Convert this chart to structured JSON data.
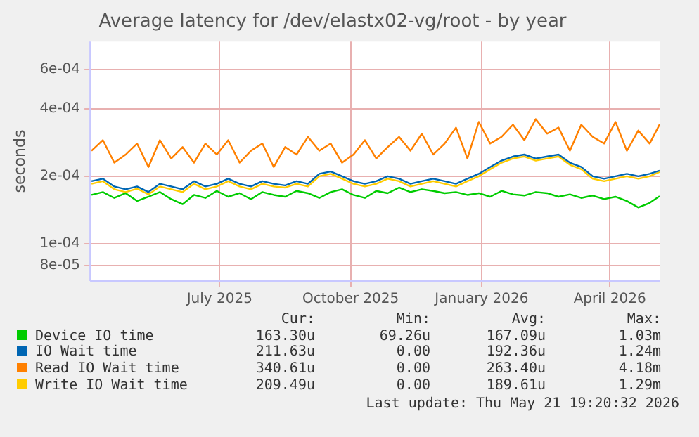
{
  "chart_data": {
    "type": "line",
    "title": "Average latency for /dev/elastx02-vg/root - by year",
    "ylabel": "seconds",
    "x": [
      "2025-04-17",
      "2025-04-25",
      "2025-05-03",
      "2025-05-11",
      "2025-05-19",
      "2025-05-27",
      "2025-06-04",
      "2025-06-12",
      "2025-06-20",
      "2025-06-28",
      "2025-07-06",
      "2025-07-14",
      "2025-07-22",
      "2025-07-30",
      "2025-08-07",
      "2025-08-15",
      "2025-08-23",
      "2025-08-31",
      "2025-09-08",
      "2025-09-16",
      "2025-09-24",
      "2025-10-02",
      "2025-10-10",
      "2025-10-18",
      "2025-10-26",
      "2025-11-03",
      "2025-11-11",
      "2025-11-19",
      "2025-11-27",
      "2025-12-05",
      "2025-12-13",
      "2025-12-21",
      "2025-12-29",
      "2026-01-06",
      "2026-01-14",
      "2026-01-22",
      "2026-01-30",
      "2026-02-07",
      "2026-02-15",
      "2026-02-23",
      "2026-03-03",
      "2026-03-11",
      "2026-03-19",
      "2026-03-27",
      "2026-04-04",
      "2026-04-12",
      "2026-04-20",
      "2026-04-28",
      "2026-05-06",
      "2026-05-14",
      "2026-05-21"
    ],
    "series": [
      {
        "name": "Device IO time",
        "color": "#00cc00",
        "values": [
          0.000165,
          0.00017,
          0.00016,
          0.000168,
          0.000155,
          0.000162,
          0.00017,
          0.000158,
          0.00015,
          0.000165,
          0.00016,
          0.000172,
          0.000162,
          0.000168,
          0.000158,
          0.00017,
          0.000165,
          0.000162,
          0.000172,
          0.000168,
          0.00016,
          0.00017,
          0.000175,
          0.000165,
          0.00016,
          0.000172,
          0.000168,
          0.000178,
          0.00017,
          0.000175,
          0.000172,
          0.000168,
          0.00017,
          0.000165,
          0.000168,
          0.000162,
          0.000172,
          0.000166,
          0.000164,
          0.00017,
          0.000168,
          0.000162,
          0.000166,
          0.00016,
          0.000164,
          0.000158,
          0.000162,
          0.000155,
          0.000145,
          0.000152,
          0.000163
        ]
      },
      {
        "name": "IO Wait time",
        "color": "#0066b3",
        "values": [
          0.00019,
          0.000195,
          0.00018,
          0.000175,
          0.00018,
          0.00017,
          0.000185,
          0.00018,
          0.000175,
          0.00019,
          0.00018,
          0.000185,
          0.000195,
          0.000185,
          0.00018,
          0.00019,
          0.000185,
          0.000182,
          0.00019,
          0.000185,
          0.000205,
          0.00021,
          0.0002,
          0.00019,
          0.000185,
          0.00019,
          0.0002,
          0.000195,
          0.000185,
          0.00019,
          0.000195,
          0.00019,
          0.000185,
          0.000195,
          0.000205,
          0.00022,
          0.000235,
          0.000245,
          0.00025,
          0.00024,
          0.000245,
          0.00025,
          0.00023,
          0.00022,
          0.0002,
          0.000195,
          0.0002,
          0.000205,
          0.0002,
          0.000205,
          0.000212
        ]
      },
      {
        "name": "Read IO Wait time",
        "color": "#ff8000",
        "values": [
          0.00026,
          0.00029,
          0.00023,
          0.00025,
          0.00028,
          0.00022,
          0.00029,
          0.00024,
          0.00027,
          0.00023,
          0.00028,
          0.00025,
          0.00029,
          0.00023,
          0.00026,
          0.00028,
          0.00022,
          0.00027,
          0.00025,
          0.0003,
          0.00026,
          0.00028,
          0.00023,
          0.00025,
          0.00029,
          0.00024,
          0.00027,
          0.0003,
          0.00026,
          0.00031,
          0.00025,
          0.00028,
          0.00033,
          0.00024,
          0.00035,
          0.00028,
          0.0003,
          0.00034,
          0.00029,
          0.00036,
          0.00031,
          0.00033,
          0.00026,
          0.00034,
          0.0003,
          0.00028,
          0.00035,
          0.00026,
          0.00032,
          0.00028,
          0.000341
        ]
      },
      {
        "name": "Write IO Wait time",
        "color": "#ffcc00",
        "values": [
          0.000185,
          0.00019,
          0.000175,
          0.00017,
          0.000176,
          0.000166,
          0.00018,
          0.000175,
          0.00017,
          0.000185,
          0.000175,
          0.00018,
          0.00019,
          0.00018,
          0.000175,
          0.000185,
          0.00018,
          0.000178,
          0.000185,
          0.00018,
          0.0002,
          0.000205,
          0.000195,
          0.000185,
          0.00018,
          0.000185,
          0.000195,
          0.00019,
          0.00018,
          0.000185,
          0.00019,
          0.000185,
          0.00018,
          0.00019,
          0.0002,
          0.000215,
          0.00023,
          0.00024,
          0.000245,
          0.000235,
          0.00024,
          0.000245,
          0.000225,
          0.000215,
          0.000195,
          0.00019,
          0.000195,
          0.0002,
          0.000195,
          0.0002,
          0.000209
        ]
      }
    ],
    "log": true,
    "ylim": [
      6.8e-05,
      0.0008
    ],
    "yticks": [
      {
        "value": 8e-05,
        "label": "8e-05"
      },
      {
        "value": 0.0001,
        "label": "1e-04"
      },
      {
        "value": 0.0002,
        "label": "2e-04"
      },
      {
        "value": 0.0004,
        "label": "4e-04"
      },
      {
        "value": 0.0006,
        "label": "6e-04"
      }
    ],
    "xlim": [
      "2025-04-16",
      "2026-05-21"
    ],
    "xticks": [
      {
        "value": "2025-07-16",
        "label": "July 2025"
      },
      {
        "value": "2025-10-16",
        "label": "October 2025"
      },
      {
        "value": "2026-01-16",
        "label": "January 2026"
      },
      {
        "value": "2026-04-16",
        "label": "April 2026"
      }
    ],
    "grid": true,
    "legend": "bottom",
    "marker": "none",
    "line_style": "solid",
    "annotations": [
      "Cur:",
      "Min:",
      "Avg:",
      "Max:",
      "163.30u",
      "69.26u",
      "167.09u",
      "1.03m",
      "211.63u",
      "0.00",
      "192.36u",
      "1.24m",
      "340.61u",
      "0.00",
      "263.40u",
      "4.18m",
      "209.49u",
      "0.00",
      "189.61u",
      "1.29m",
      "Last update: Thu May 21 19:20:32 2026"
    ]
  }
}
